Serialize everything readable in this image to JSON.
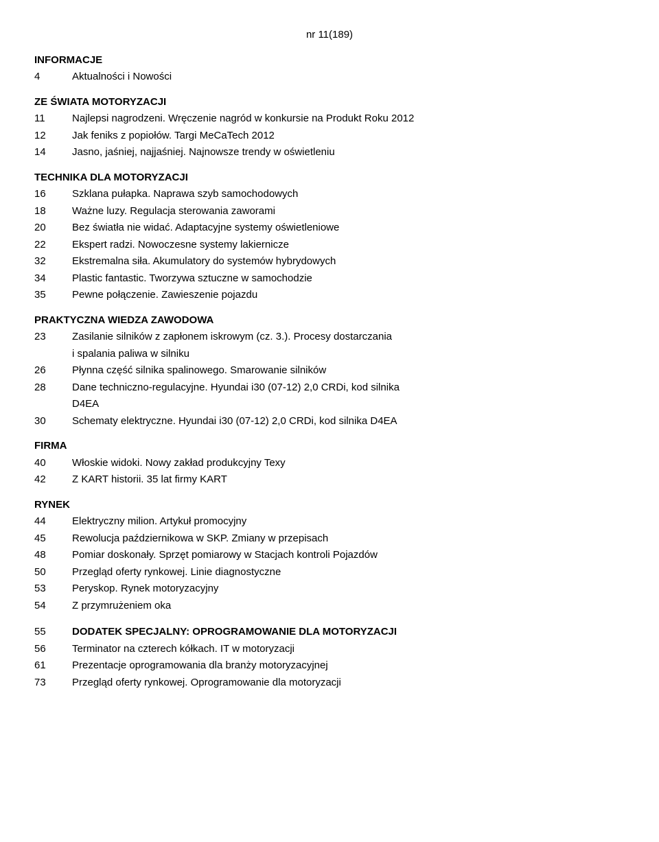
{
  "issue": "nr 11(189)",
  "sections": [
    {
      "heading": "INFORMACJE",
      "entries": [
        {
          "num": "4",
          "text": "Aktualności i Nowości"
        }
      ]
    },
    {
      "heading": "ZE ŚWIATA MOTORYZACJI",
      "entries": [
        {
          "num": "11",
          "text": "Najlepsi nagrodzeni. Wręczenie nagród w konkursie na Produkt Roku 2012"
        },
        {
          "num": "12",
          "text": "Jak feniks z popiołów. Targi MeCaTech 2012"
        },
        {
          "num": "14",
          "text": "Jasno, jaśniej, najjaśniej. Najnowsze trendy w oświetleniu"
        }
      ]
    },
    {
      "heading": "TECHNIKA DLA MOTORYZACJI",
      "entries": [
        {
          "num": "16",
          "text": "Szklana pułapka. Naprawa szyb samochodowych"
        },
        {
          "num": "18",
          "text": "Ważne luzy. Regulacja sterowania zaworami"
        },
        {
          "num": "20",
          "text": "Bez światła nie widać. Adaptacyjne systemy oświetleniowe"
        },
        {
          "num": "22",
          "text": "Ekspert radzi. Nowoczesne systemy lakiernicze"
        },
        {
          "num": "32",
          "text": "Ekstremalna siła. Akumulatory do systemów hybrydowych"
        },
        {
          "num": "34",
          "text": "Plastic fantastic. Tworzywa sztuczne w samochodzie"
        },
        {
          "num": "35",
          "text": "Pewne połączenie. Zawieszenie pojazdu"
        }
      ]
    },
    {
      "heading": "PRAKTYCZNA WIEDZA ZAWODOWA",
      "entries": [
        {
          "num": "23",
          "text": "Zasilanie silników z zapłonem iskrowym (cz. 3.). Procesy dostarczania",
          "cont": "i spalania paliwa w silniku"
        },
        {
          "num": "26",
          "text": "Płynna część silnika spalinowego. Smarowanie silników"
        },
        {
          "num": "28",
          "text": "Dane techniczno-regulacyjne. Hyundai i30 (07-12) 2,0 CRDi, kod silnika",
          "cont": "D4EA"
        },
        {
          "num": "30",
          "text": "Schematy elektryczne. Hyundai i30 (07-12) 2,0 CRDi, kod silnika D4EA"
        }
      ]
    },
    {
      "heading": "FIRMA",
      "entries": [
        {
          "num": "40",
          "text": "Włoskie widoki. Nowy zakład produkcyjny Texy"
        },
        {
          "num": "42",
          "text": "Z KART historii. 35 lat firmy KART"
        }
      ]
    },
    {
      "heading": "RYNEK",
      "entries": [
        {
          "num": "44",
          "text": "Elektryczny milion. Artykuł promocyjny"
        },
        {
          "num": "45",
          "text": "Rewolucja październikowa w SKP. Zmiany w przepisach"
        },
        {
          "num": "48",
          "text": "Pomiar doskonały. Sprzęt pomiarowy w Stacjach kontroli Pojazdów"
        },
        {
          "num": "50",
          "text": "Przegląd oferty rynkowej. Linie diagnostyczne"
        },
        {
          "num": "53",
          "text": "Peryskop. Rynek motoryzacyjny"
        },
        {
          "num": "54",
          "text": "Z przymrużeniem oka"
        }
      ]
    },
    {
      "heading": "",
      "spacer": true,
      "entries": [
        {
          "num": "55",
          "text": "DODATEK SPECJALNY: OPROGRAMOWANIE DLA MOTORYZACJI",
          "bold": true
        },
        {
          "num": "56",
          "text": "Terminator na czterech kółkach. IT w motoryzacji"
        },
        {
          "num": "61",
          "text": "Prezentacje oprogramowania dla branży motoryzacyjnej"
        },
        {
          "num": "73",
          "text": "Przegląd oferty rynkowej. Oprogramowanie dla motoryzacji"
        }
      ]
    }
  ]
}
